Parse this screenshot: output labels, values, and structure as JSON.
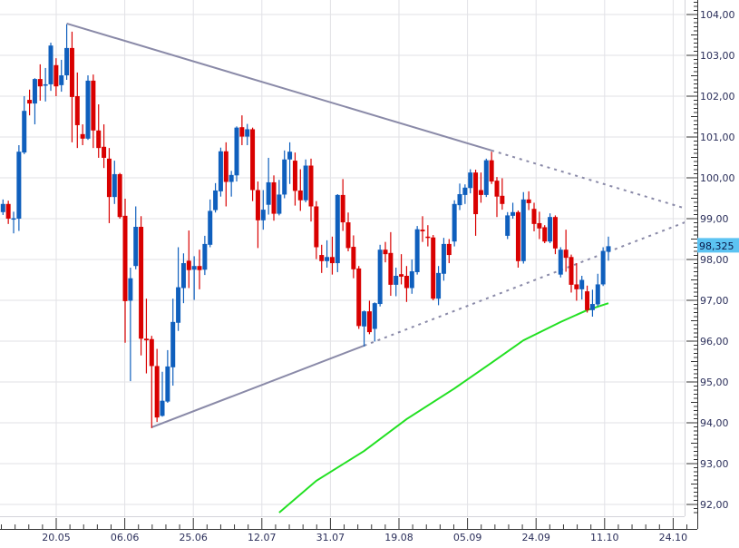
{
  "chart_data": {
    "type": "candlestick",
    "y_ticks": [
      "104,00",
      "103,00",
      "102,00",
      "101,00",
      "100,00",
      "99,00",
      "98,00",
      "97,00",
      "96,00",
      "95,00",
      "94,00",
      "93,00",
      "92,00"
    ],
    "y_tick_values": [
      104,
      103,
      102,
      101,
      100,
      99,
      98,
      97,
      96,
      95,
      94,
      93,
      92
    ],
    "ylim": [
      91.71,
      104.36
    ],
    "x_ticks": [
      "20.05",
      "06.06",
      "25.06",
      "12.07",
      "31.07",
      "19.08",
      "05.09",
      "24.09",
      "11.10",
      "24.10"
    ],
    "grid": true,
    "last_price_label": "98,325",
    "colors": {
      "up": "#0f5fbd",
      "down": "#d90000",
      "trendline": "#8a8aa8",
      "moving_average": "#22e022",
      "last_price_bg": "#5cc3f2",
      "grid": "#e2e2e6"
    },
    "candles_ohlc": [
      [
        99.16,
        99.47,
        99.09,
        99.36
      ],
      [
        99.36,
        99.44,
        98.87,
        99.0
      ],
      [
        98.99,
        99.17,
        98.64,
        99.01
      ],
      [
        99.0,
        100.8,
        98.7,
        100.64
      ],
      [
        100.62,
        102.0,
        100.58,
        101.64
      ],
      [
        101.91,
        102.16,
        101.53,
        101.82
      ],
      [
        101.82,
        102.44,
        101.31,
        102.42
      ],
      [
        102.42,
        102.78,
        101.89,
        102.24
      ],
      [
        102.27,
        102.69,
        101.87,
        102.29
      ],
      [
        102.29,
        103.31,
        102.13,
        103.24
      ],
      [
        102.76,
        102.93,
        102.0,
        102.24
      ],
      [
        102.27,
        102.89,
        102.11,
        102.51
      ],
      [
        102.51,
        103.76,
        102.4,
        103.18
      ],
      [
        103.18,
        103.58,
        100.87,
        101.98
      ],
      [
        102.0,
        102.58,
        100.73,
        101.29
      ],
      [
        101.07,
        101.31,
        100.8,
        100.96
      ],
      [
        100.96,
        102.51,
        100.93,
        102.38
      ],
      [
        102.38,
        102.53,
        100.73,
        101.16
      ],
      [
        101.16,
        101.8,
        100.49,
        100.73
      ],
      [
        100.76,
        101.31,
        100.24,
        100.49
      ],
      [
        100.47,
        100.73,
        98.89,
        99.53
      ],
      [
        99.53,
        100.42,
        99.36,
        100.09
      ],
      [
        100.09,
        100.12,
        99.0,
        99.04
      ],
      [
        99.07,
        99.49,
        95.96,
        96.98
      ],
      [
        96.99,
        97.8,
        95.02,
        97.54
      ],
      [
        97.84,
        99.3,
        97.76,
        98.8
      ],
      [
        98.8,
        99.06,
        95.65,
        96.06
      ],
      [
        96.06,
        97.04,
        95.21,
        96.02
      ],
      [
        96.05,
        96.13,
        93.87,
        95.39
      ],
      [
        95.39,
        95.81,
        94.02,
        94.13
      ],
      [
        94.17,
        95.25,
        94.15,
        94.54
      ],
      [
        94.52,
        95.78,
        94.49,
        95.38
      ],
      [
        95.36,
        97.04,
        94.91,
        96.47
      ],
      [
        96.45,
        98.3,
        96.25,
        97.32
      ],
      [
        97.3,
        98.15,
        96.93,
        97.91
      ],
      [
        97.97,
        98.71,
        97.3,
        97.74
      ],
      [
        97.75,
        98.08,
        97.01,
        97.84
      ],
      [
        97.84,
        98.24,
        97.27,
        97.74
      ],
      [
        97.75,
        98.58,
        97.62,
        98.38
      ],
      [
        98.36,
        99.47,
        98.3,
        99.19
      ],
      [
        99.21,
        99.87,
        99.15,
        99.69
      ],
      [
        99.67,
        100.74,
        99.54,
        100.65
      ],
      [
        100.65,
        100.87,
        99.3,
        99.9
      ],
      [
        99.9,
        100.17,
        99.54,
        100.07
      ],
      [
        100.06,
        101.26,
        99.91,
        101.23
      ],
      [
        101.24,
        101.53,
        100.8,
        101.01
      ],
      [
        101.01,
        101.32,
        100.8,
        101.19
      ],
      [
        101.19,
        101.23,
        99.43,
        99.7
      ],
      [
        99.7,
        99.91,
        98.28,
        98.96
      ],
      [
        98.96,
        99.7,
        98.73,
        99.22
      ],
      [
        99.34,
        100.49,
        99.1,
        99.89
      ],
      [
        99.89,
        100.06,
        98.95,
        99.12
      ],
      [
        99.12,
        99.95,
        99.08,
        99.59
      ],
      [
        99.59,
        100.67,
        99.5,
        100.45
      ],
      [
        100.45,
        100.87,
        99.85,
        100.64
      ],
      [
        100.42,
        100.62,
        99.32,
        99.68
      ],
      [
        99.69,
        100.21,
        99.19,
        99.45
      ],
      [
        99.45,
        100.45,
        99.4,
        100.3
      ],
      [
        100.3,
        100.47,
        98.93,
        99.3
      ],
      [
        99.3,
        99.43,
        98.01,
        98.3
      ],
      [
        98.11,
        98.36,
        97.67,
        97.96
      ],
      [
        97.96,
        98.47,
        97.8,
        98.06
      ],
      [
        98.06,
        98.56,
        97.63,
        97.91
      ],
      [
        97.91,
        99.6,
        97.69,
        99.58
      ],
      [
        99.58,
        99.97,
        98.7,
        98.91
      ],
      [
        98.91,
        99.15,
        98.2,
        98.28
      ],
      [
        98.31,
        98.59,
        97.54,
        97.76
      ],
      [
        97.78,
        97.84,
        96.3,
        96.37
      ],
      [
        96.36,
        96.75,
        95.87,
        96.73
      ],
      [
        96.73,
        96.99,
        96.17,
        96.22
      ],
      [
        96.3,
        96.95,
        95.99,
        96.93
      ],
      [
        96.91,
        98.36,
        96.85,
        98.24
      ],
      [
        98.24,
        98.43,
        97.93,
        98.13
      ],
      [
        98.16,
        98.67,
        97.11,
        97.38
      ],
      [
        97.38,
        97.8,
        97.1,
        97.6
      ],
      [
        97.64,
        98.13,
        97.39,
        97.58
      ],
      [
        97.6,
        97.84,
        96.96,
        97.3
      ],
      [
        97.3,
        98.0,
        97.16,
        97.71
      ],
      [
        97.69,
        98.82,
        97.63,
        98.74
      ],
      [
        98.73,
        99.06,
        98.43,
        98.69
      ],
      [
        98.56,
        98.84,
        98.32,
        98.53
      ],
      [
        98.54,
        98.6,
        97.0,
        97.04
      ],
      [
        97.04,
        97.84,
        96.88,
        97.67
      ],
      [
        97.65,
        98.53,
        97.48,
        98.38
      ],
      [
        98.38,
        98.5,
        97.91,
        98.11
      ],
      [
        98.44,
        99.45,
        98.32,
        99.36
      ],
      [
        99.33,
        99.86,
        99.21,
        99.6
      ],
      [
        99.58,
        99.84,
        99.36,
        99.76
      ],
      [
        99.75,
        100.21,
        99.62,
        100.13
      ],
      [
        100.13,
        100.2,
        98.58,
        99.11
      ],
      [
        99.7,
        100.13,
        99.39,
        99.58
      ],
      [
        99.58,
        100.47,
        99.53,
        100.43
      ],
      [
        100.43,
        100.64,
        99.85,
        99.91
      ],
      [
        99.93,
        100.02,
        99.04,
        99.54
      ],
      [
        99.56,
        99.99,
        99.22,
        99.36
      ],
      [
        98.58,
        99.16,
        98.5,
        99.08
      ],
      [
        99.07,
        99.39,
        99.0,
        99.16
      ],
      [
        99.16,
        99.2,
        97.8,
        97.96
      ],
      [
        97.96,
        99.65,
        97.9,
        99.47
      ],
      [
        99.47,
        99.67,
        99.21,
        99.38
      ],
      [
        99.24,
        99.39,
        98.69,
        98.87
      ],
      [
        98.89,
        99.17,
        98.5,
        98.76
      ],
      [
        98.79,
        98.84,
        98.4,
        98.44
      ],
      [
        98.44,
        99.13,
        98.4,
        99.04
      ],
      [
        99.04,
        99.08,
        98.13,
        98.27
      ],
      [
        97.63,
        98.3,
        97.56,
        98.24
      ],
      [
        98.24,
        98.73,
        97.7,
        98.04
      ],
      [
        98.06,
        98.12,
        97.19,
        97.38
      ],
      [
        97.39,
        97.91,
        96.99,
        97.27
      ],
      [
        97.27,
        97.6,
        97.02,
        97.5
      ],
      [
        97.22,
        97.36,
        96.7,
        96.76
      ],
      [
        96.76,
        97.26,
        96.6,
        96.91
      ],
      [
        96.9,
        97.65,
        96.85,
        97.39
      ],
      [
        97.39,
        98.3,
        97.35,
        98.21
      ],
      [
        98.19,
        98.56,
        97.97,
        98.325
      ]
    ],
    "trendlines": [
      {
        "from": [
          12,
          103.78
        ],
        "to": [
          92,
          100.67
        ],
        "extension": "dotted"
      },
      {
        "from": [
          28,
          93.89
        ],
        "to": [
          68,
          95.89
        ],
        "extension": "dotted"
      }
    ],
    "moving_average": [
      [
        52,
        91.8
      ],
      [
        59,
        92.58
      ],
      [
        68,
        93.31
      ],
      [
        76,
        94.09
      ],
      [
        85,
        94.84
      ],
      [
        92,
        95.47
      ],
      [
        98,
        96.02
      ],
      [
        105,
        96.47
      ],
      [
        110,
        96.76
      ],
      [
        114,
        96.93
      ]
    ]
  }
}
